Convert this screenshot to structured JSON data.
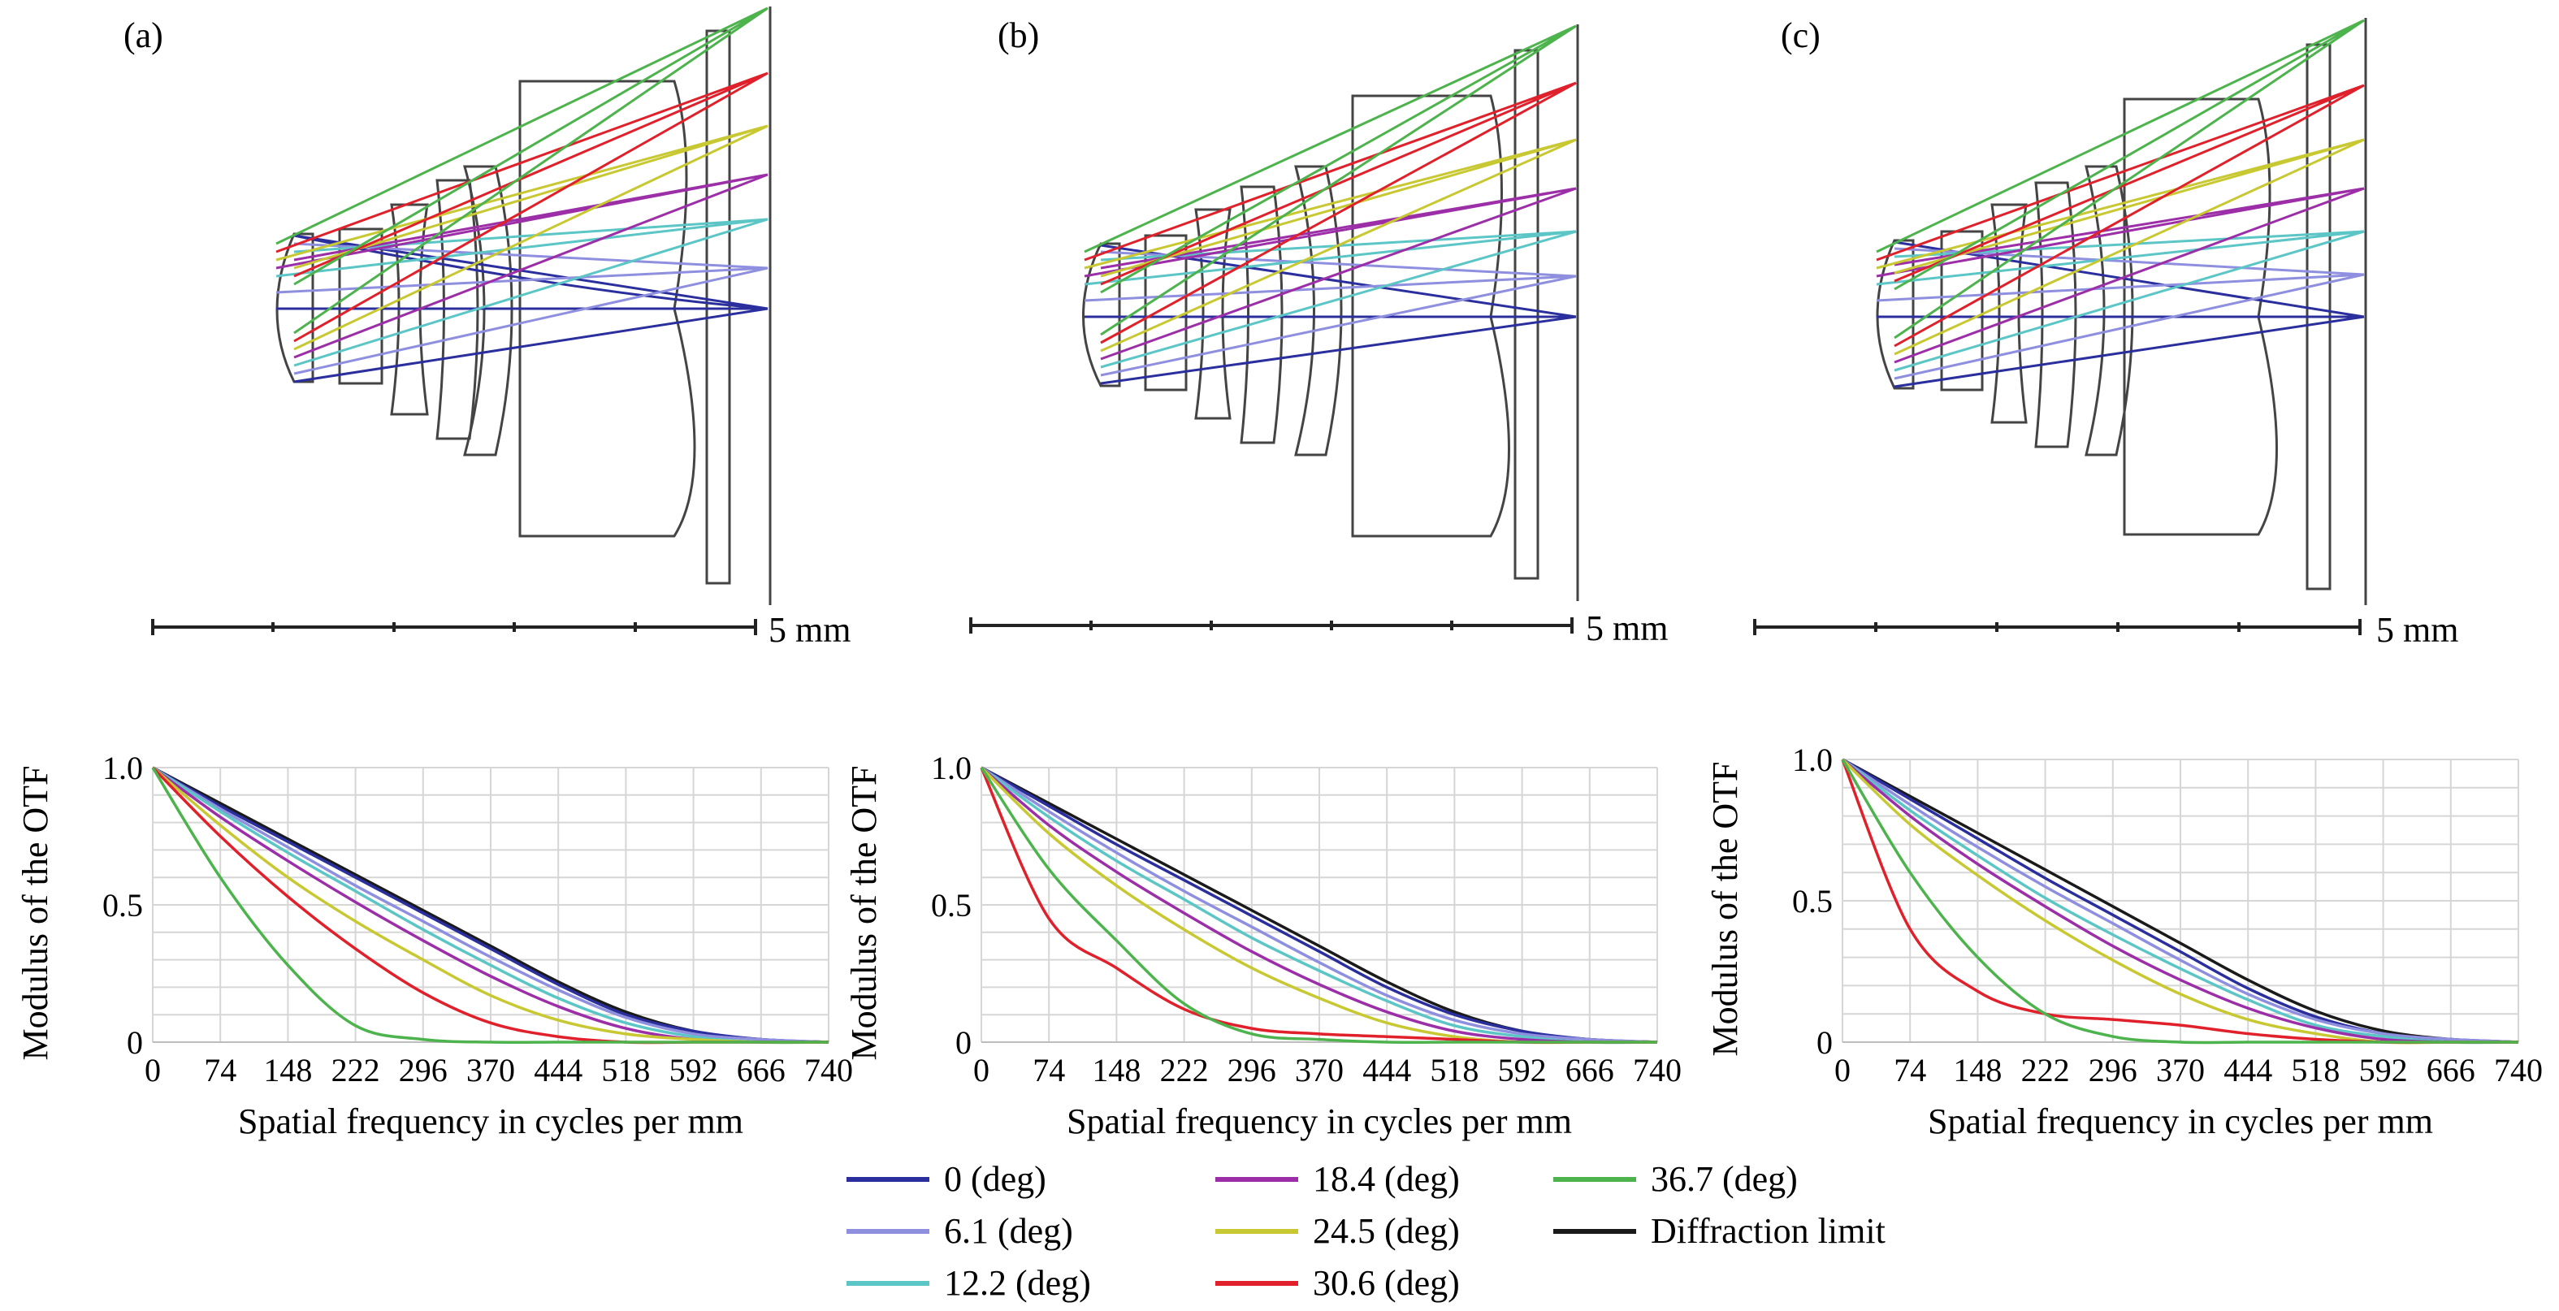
{
  "figure": {
    "panels": [
      {
        "label": "(a)",
        "scale_label": "5 mm"
      },
      {
        "label": "(b)",
        "scale_label": "5 mm"
      },
      {
        "label": "(c)",
        "scale_label": "5 mm"
      }
    ],
    "legend": [
      {
        "label": "0 (deg)",
        "color": "#2b2f9e"
      },
      {
        "label": "6.1 (deg)",
        "color": "#8f8fe0"
      },
      {
        "label": "12.2 (deg)",
        "color": "#5cc6c6"
      },
      {
        "label": "18.4 (deg)",
        "color": "#9c2fa8"
      },
      {
        "label": "24.5 (deg)",
        "color": "#c8c832"
      },
      {
        "label": "30.6 (deg)",
        "color": "#e0202a"
      },
      {
        "label": "36.7 (deg)",
        "color": "#4db34d"
      },
      {
        "label": "Diffraction limit",
        "color": "#1a1a1a"
      }
    ]
  },
  "chart_data": [
    {
      "type": "line",
      "title": "",
      "xlabel": "Spatial frequency in cycles per mm",
      "ylabel": "Modulus of the OTF",
      "xlim": [
        0,
        740
      ],
      "ylim": [
        0,
        1
      ],
      "xticks": [
        0,
        74,
        148,
        222,
        296,
        370,
        444,
        518,
        592,
        666,
        740
      ],
      "yticks": [
        0,
        0.5,
        1.0
      ],
      "ytick_labels": [
        "0",
        "0.5",
        "1.0"
      ],
      "grid": true,
      "series": [
        {
          "name": "Diffraction limit",
          "color": "#1a1a1a",
          "x": [
            0,
            74,
            148,
            222,
            296,
            370,
            444,
            518,
            592,
            666,
            740
          ],
          "y": [
            1.0,
            0.87,
            0.74,
            0.61,
            0.48,
            0.35,
            0.22,
            0.11,
            0.04,
            0.01,
            0.0
          ]
        },
        {
          "name": "0 (deg)",
          "color": "#2b2f9e",
          "x": [
            0,
            74,
            148,
            222,
            296,
            370,
            444,
            518,
            592,
            666,
            740
          ],
          "y": [
            1.0,
            0.86,
            0.73,
            0.6,
            0.47,
            0.34,
            0.21,
            0.1,
            0.04,
            0.01,
            0.0
          ]
        },
        {
          "name": "6.1 (deg)",
          "color": "#8f8fe0",
          "x": [
            0,
            74,
            148,
            222,
            296,
            370,
            444,
            518,
            592,
            666,
            740
          ],
          "y": [
            1.0,
            0.85,
            0.71,
            0.57,
            0.44,
            0.31,
            0.19,
            0.09,
            0.03,
            0.01,
            0.0
          ]
        },
        {
          "name": "12.2 (deg)",
          "color": "#5cc6c6",
          "x": [
            0,
            74,
            148,
            222,
            296,
            370,
            444,
            518,
            592,
            666,
            740
          ],
          "y": [
            1.0,
            0.84,
            0.69,
            0.55,
            0.41,
            0.28,
            0.16,
            0.07,
            0.02,
            0.0,
            0.0
          ]
        },
        {
          "name": "18.4 (deg)",
          "color": "#9c2fa8",
          "x": [
            0,
            74,
            148,
            222,
            296,
            370,
            444,
            518,
            592,
            666,
            740
          ],
          "y": [
            1.0,
            0.82,
            0.66,
            0.51,
            0.37,
            0.24,
            0.13,
            0.05,
            0.01,
            0.0,
            0.0
          ]
        },
        {
          "name": "24.5 (deg)",
          "color": "#c8c832",
          "x": [
            0,
            74,
            148,
            222,
            296,
            370,
            444,
            518,
            592,
            666,
            740
          ],
          "y": [
            1.0,
            0.79,
            0.6,
            0.44,
            0.3,
            0.17,
            0.08,
            0.03,
            0.01,
            0.0,
            0.0
          ]
        },
        {
          "name": "30.6 (deg)",
          "color": "#e0202a",
          "x": [
            0,
            74,
            148,
            222,
            296,
            370,
            444,
            518,
            592,
            666,
            740
          ],
          "y": [
            1.0,
            0.75,
            0.53,
            0.34,
            0.18,
            0.07,
            0.02,
            0.0,
            0.0,
            0.0,
            0.0
          ]
        },
        {
          "name": "36.7 (deg)",
          "color": "#4db34d",
          "x": [
            0,
            74,
            148,
            222,
            296,
            370,
            444,
            518,
            592,
            666,
            740
          ],
          "y": [
            1.0,
            0.6,
            0.28,
            0.06,
            0.01,
            0.0,
            0.0,
            0.0,
            0.0,
            0.0,
            0.0
          ]
        }
      ]
    },
    {
      "type": "line",
      "title": "",
      "xlabel": "Spatial frequency in cycles per mm",
      "ylabel": "Modulus of the OTF",
      "xlim": [
        0,
        740
      ],
      "ylim": [
        0,
        1
      ],
      "xticks": [
        0,
        74,
        148,
        222,
        296,
        370,
        444,
        518,
        592,
        666,
        740
      ],
      "yticks": [
        0,
        0.5,
        1.0
      ],
      "ytick_labels": [
        "0",
        "0.5",
        "1.0"
      ],
      "grid": true,
      "series": [
        {
          "name": "Diffraction limit",
          "color": "#1a1a1a",
          "x": [
            0,
            74,
            148,
            222,
            296,
            370,
            444,
            518,
            592,
            666,
            740
          ],
          "y": [
            1.0,
            0.87,
            0.74,
            0.61,
            0.48,
            0.35,
            0.22,
            0.11,
            0.04,
            0.01,
            0.0
          ]
        },
        {
          "name": "0 (deg)",
          "color": "#2b2f9e",
          "x": [
            0,
            74,
            148,
            222,
            296,
            370,
            444,
            518,
            592,
            666,
            740
          ],
          "y": [
            1.0,
            0.86,
            0.72,
            0.59,
            0.46,
            0.33,
            0.2,
            0.1,
            0.04,
            0.01,
            0.0
          ]
        },
        {
          "name": "6.1 (deg)",
          "color": "#8f8fe0",
          "x": [
            0,
            74,
            148,
            222,
            296,
            370,
            444,
            518,
            592,
            666,
            740
          ],
          "y": [
            1.0,
            0.84,
            0.69,
            0.55,
            0.42,
            0.29,
            0.17,
            0.08,
            0.03,
            0.01,
            0.0
          ]
        },
        {
          "name": "12.2 (deg)",
          "color": "#5cc6c6",
          "x": [
            0,
            74,
            148,
            222,
            296,
            370,
            444,
            518,
            592,
            666,
            740
          ],
          "y": [
            1.0,
            0.82,
            0.66,
            0.52,
            0.38,
            0.26,
            0.15,
            0.06,
            0.02,
            0.0,
            0.0
          ]
        },
        {
          "name": "18.4 (deg)",
          "color": "#9c2fa8",
          "x": [
            0,
            74,
            148,
            222,
            296,
            370,
            444,
            518,
            592,
            666,
            740
          ],
          "y": [
            1.0,
            0.79,
            0.62,
            0.47,
            0.33,
            0.21,
            0.11,
            0.04,
            0.01,
            0.0,
            0.0
          ]
        },
        {
          "name": "24.5 (deg)",
          "color": "#c8c832",
          "x": [
            0,
            74,
            148,
            222,
            296,
            370,
            444,
            518,
            592,
            666,
            740
          ],
          "y": [
            1.0,
            0.76,
            0.57,
            0.41,
            0.27,
            0.16,
            0.07,
            0.02,
            0.0,
            0.0,
            0.0
          ]
        },
        {
          "name": "30.6 (deg)",
          "color": "#e0202a",
          "x": [
            0,
            74,
            148,
            222,
            296,
            370,
            444,
            518,
            592,
            666,
            740
          ],
          "y": [
            1.0,
            0.45,
            0.27,
            0.12,
            0.05,
            0.03,
            0.02,
            0.01,
            0.0,
            0.0,
            0.0
          ]
        },
        {
          "name": "36.7 (deg)",
          "color": "#4db34d",
          "x": [
            0,
            74,
            148,
            222,
            296,
            370,
            444,
            518,
            592,
            666,
            740
          ],
          "y": [
            1.0,
            0.63,
            0.37,
            0.14,
            0.03,
            0.01,
            0.0,
            0.0,
            0.0,
            0.0,
            0.0
          ]
        }
      ]
    },
    {
      "type": "line",
      "title": "",
      "xlabel": "Spatial frequency in cycles per mm",
      "ylabel": "Modulus of the OTF",
      "xlim": [
        0,
        740
      ],
      "ylim": [
        0,
        1
      ],
      "xticks": [
        0,
        74,
        148,
        222,
        296,
        370,
        444,
        518,
        592,
        666,
        740
      ],
      "yticks": [
        0,
        0.5,
        1.0
      ],
      "ytick_labels": [
        "0",
        "0.5",
        "1.0"
      ],
      "grid": true,
      "series": [
        {
          "name": "Diffraction limit",
          "color": "#1a1a1a",
          "x": [
            0,
            74,
            148,
            222,
            296,
            370,
            444,
            518,
            592,
            666,
            740
          ],
          "y": [
            1.0,
            0.87,
            0.74,
            0.61,
            0.48,
            0.35,
            0.22,
            0.11,
            0.04,
            0.01,
            0.0
          ]
        },
        {
          "name": "0 (deg)",
          "color": "#2b2f9e",
          "x": [
            0,
            74,
            148,
            222,
            296,
            370,
            444,
            518,
            592,
            666,
            740
          ],
          "y": [
            1.0,
            0.86,
            0.72,
            0.58,
            0.45,
            0.32,
            0.19,
            0.09,
            0.03,
            0.01,
            0.0
          ]
        },
        {
          "name": "6.1 (deg)",
          "color": "#8f8fe0",
          "x": [
            0,
            74,
            148,
            222,
            296,
            370,
            444,
            518,
            592,
            666,
            740
          ],
          "y": [
            1.0,
            0.84,
            0.69,
            0.55,
            0.42,
            0.29,
            0.17,
            0.08,
            0.03,
            0.01,
            0.0
          ]
        },
        {
          "name": "12.2 (deg)",
          "color": "#5cc6c6",
          "x": [
            0,
            74,
            148,
            222,
            296,
            370,
            444,
            518,
            592,
            666,
            740
          ],
          "y": [
            1.0,
            0.82,
            0.66,
            0.51,
            0.38,
            0.26,
            0.15,
            0.06,
            0.02,
            0.0,
            0.0
          ]
        },
        {
          "name": "18.4 (deg)",
          "color": "#9c2fa8",
          "x": [
            0,
            74,
            148,
            222,
            296,
            370,
            444,
            518,
            592,
            666,
            740
          ],
          "y": [
            1.0,
            0.8,
            0.63,
            0.48,
            0.34,
            0.22,
            0.12,
            0.05,
            0.01,
            0.0,
            0.0
          ]
        },
        {
          "name": "24.5 (deg)",
          "color": "#c8c832",
          "x": [
            0,
            74,
            148,
            222,
            296,
            370,
            444,
            518,
            592,
            666,
            740
          ],
          "y": [
            1.0,
            0.77,
            0.59,
            0.43,
            0.29,
            0.17,
            0.08,
            0.03,
            0.0,
            0.0,
            0.0
          ]
        },
        {
          "name": "30.6 (deg)",
          "color": "#e0202a",
          "x": [
            0,
            74,
            148,
            222,
            296,
            370,
            444,
            518,
            592,
            666,
            740
          ],
          "y": [
            1.0,
            0.4,
            0.18,
            0.1,
            0.08,
            0.06,
            0.03,
            0.01,
            0.0,
            0.0,
            0.0
          ]
        },
        {
          "name": "36.7 (deg)",
          "color": "#4db34d",
          "x": [
            0,
            74,
            148,
            222,
            296,
            370,
            444,
            518,
            592,
            666,
            740
          ],
          "y": [
            1.0,
            0.6,
            0.3,
            0.1,
            0.02,
            0.0,
            0.0,
            0.0,
            0.0,
            0.0,
            0.0
          ]
        }
      ]
    }
  ]
}
